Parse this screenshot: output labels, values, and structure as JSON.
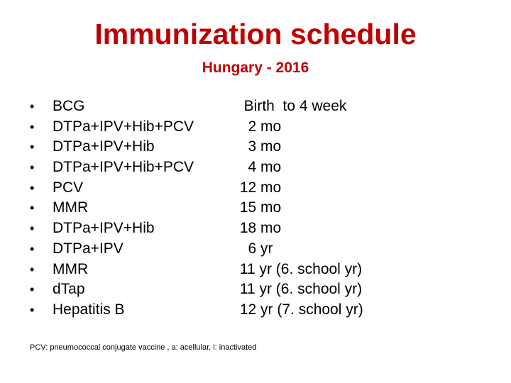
{
  "slide": {
    "title": "Immunization schedule",
    "subtitle": "Hungary - 2016",
    "bullet": "•",
    "schedule": [
      {
        "vaccine": "BCG",
        "age": "  Birth  to 4 week"
      },
      {
        "vaccine": "DTPa+IPV+Hib+PCV",
        "age": "   2 mo"
      },
      {
        "vaccine": "DTPa+IPV+Hib",
        "age": "   3 mo"
      },
      {
        "vaccine": "DTPa+IPV+Hib+PCV",
        "age": "   4 mo"
      },
      {
        "vaccine": "PCV",
        "age": " 12 mo"
      },
      {
        "vaccine": "MMR",
        "age": " 15 mo"
      },
      {
        "vaccine": "DTPa+IPV+Hib",
        "age": " 18 mo"
      },
      {
        "vaccine": "DTPa+IPV",
        "age": "   6 yr"
      },
      {
        "vaccine": "MMR",
        "age": " 11 yr (6. school yr)"
      },
      {
        "vaccine": "dTap",
        "age": " 11 yr (6. school yr)"
      },
      {
        "vaccine": "Hepatitis B",
        "age": " 12 yr (7. school yr)"
      }
    ],
    "footnote": "PCV: pneumococcal conjugate vaccine , a: acellular, i: inactivated"
  },
  "colors": {
    "title": "#c00000",
    "text": "#000000",
    "background": "#ffffff"
  }
}
